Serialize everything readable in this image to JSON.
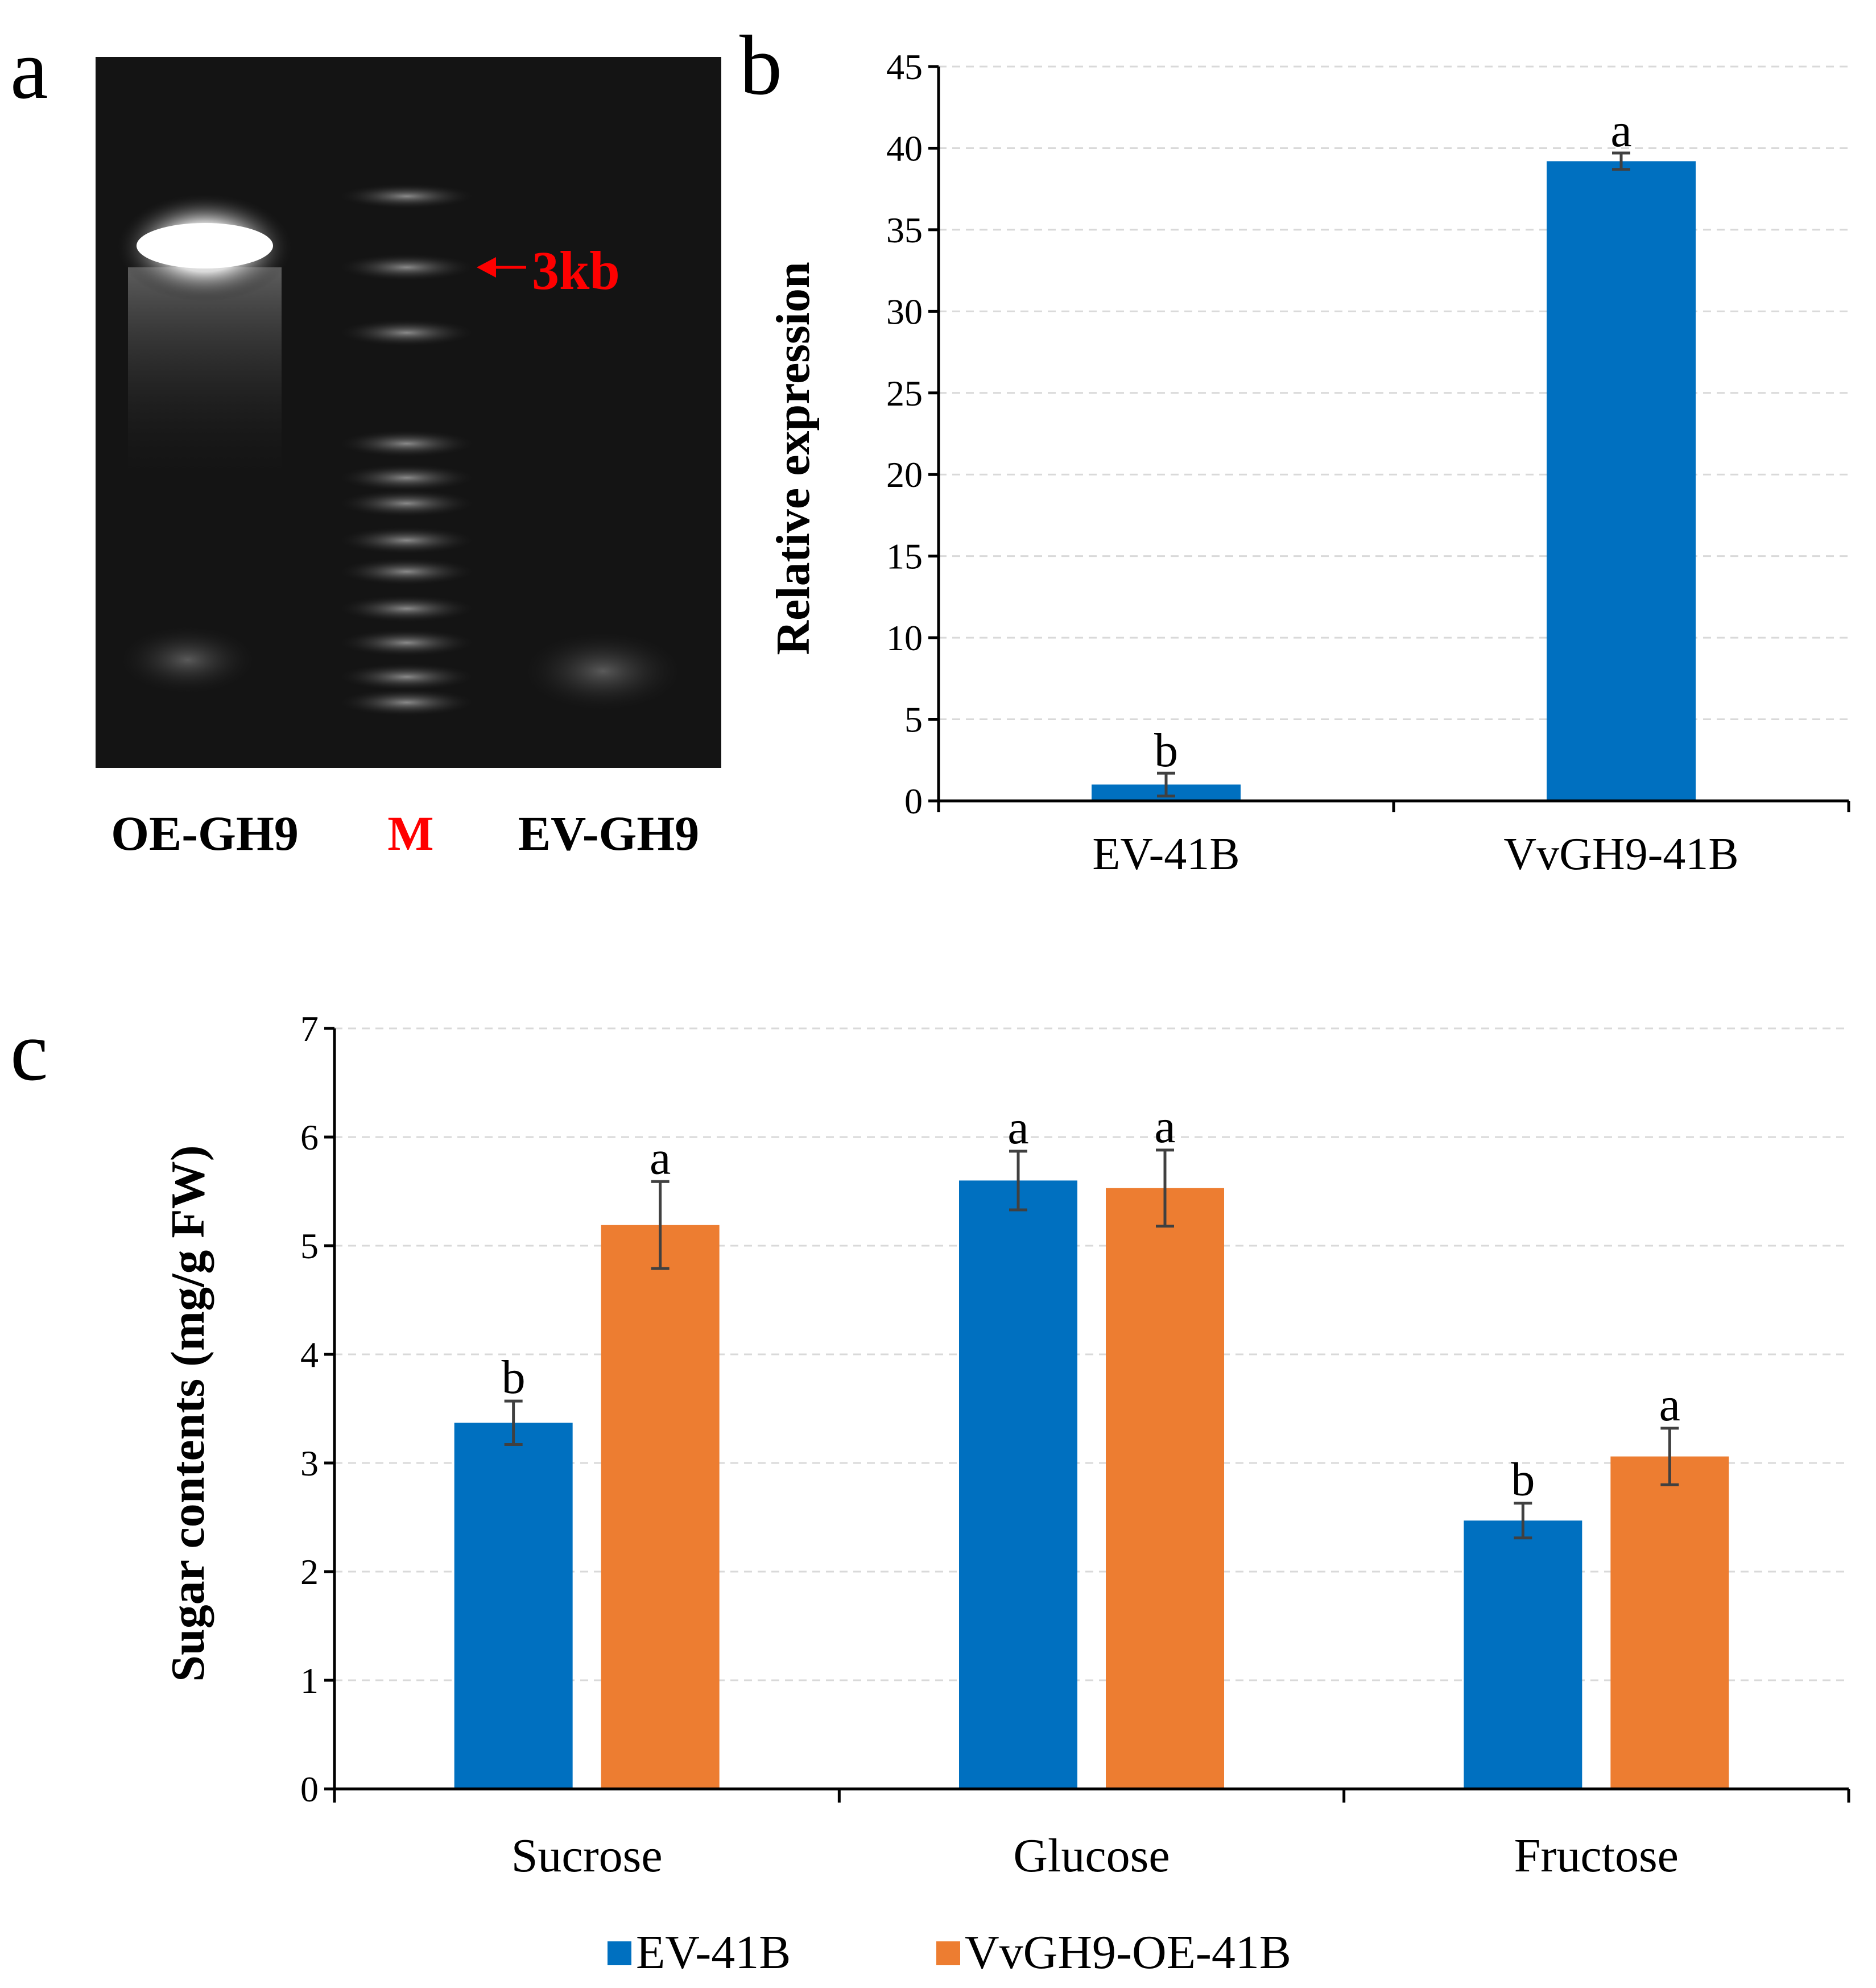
{
  "panel_a": {
    "letter": "a",
    "lanes": [
      {
        "label": "OE-GH9",
        "color": "#000000"
      },
      {
        "label": "M",
        "color": "#ff0000"
      },
      {
        "label": "EV-GH9",
        "color": "#000000"
      }
    ],
    "marker_annotation": "3kb",
    "marker_color": "#ff0000"
  },
  "panel_b_letter": "b",
  "panel_c_letter": "c",
  "chart_data": [
    {
      "id": "b",
      "type": "bar",
      "title": "",
      "xlabel": "",
      "ylabel": "Relative expression",
      "categories": [
        "EV-41B",
        "VvGH9-41B"
      ],
      "values": [
        1.0,
        39.2
      ],
      "errors": [
        0.7,
        0.5
      ],
      "significance": [
        "b",
        "a"
      ],
      "ylim": [
        0,
        45
      ],
      "yticks": [
        0,
        5,
        10,
        15,
        20,
        25,
        30,
        35,
        40,
        45
      ],
      "color": "#0070c0",
      "grid": true
    },
    {
      "id": "c",
      "type": "bar",
      "title": "",
      "xlabel": "",
      "ylabel": "Sugar contents (mg/g FW)",
      "categories": [
        "Sucrose",
        "Glucose",
        "Fructose"
      ],
      "series": [
        {
          "name": "EV-41B",
          "color": "#0070c0",
          "values": [
            3.37,
            5.6,
            2.47
          ],
          "errors": [
            0.2,
            0.27,
            0.16
          ],
          "significance": [
            "b",
            "a",
            "b"
          ]
        },
        {
          "name": "VvGH9-OE-41B",
          "color": "#ed7d31",
          "values": [
            5.19,
            5.53,
            3.06
          ],
          "errors": [
            0.4,
            0.35,
            0.26
          ],
          "significance": [
            "a",
            "a",
            "a"
          ]
        }
      ],
      "ylim": [
        0,
        7
      ],
      "yticks": [
        0,
        1,
        2,
        3,
        4,
        5,
        6,
        7
      ],
      "legend_position": "bottom",
      "grid": true
    }
  ]
}
